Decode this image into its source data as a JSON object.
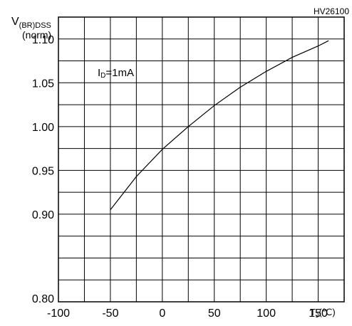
{
  "chart_data": {
    "type": "line",
    "code_label": "HV26100",
    "ylabel_main": "V",
    "ylabel_sub": "(BR)DSS",
    "ylabel_norm": "(norm)",
    "xlabel": "T",
    "xlabel_sub": "J",
    "xlabel_unit": "(℃)",
    "annotation": "I",
    "annotation_sub": "D",
    "annotation_value": "=1mA",
    "xlim": [
      -100,
      175
    ],
    "ylim": [
      0.8,
      1.125
    ],
    "x_ticks": [
      {
        "value": -100,
        "label": "-100"
      },
      {
        "value": -50,
        "label": "-50"
      },
      {
        "value": 0,
        "label": "0"
      },
      {
        "value": 50,
        "label": "50"
      },
      {
        "value": 100,
        "label": "100"
      },
      {
        "value": 150,
        "label": "150"
      }
    ],
    "y_ticks": [
      {
        "value": 0.9,
        "label": "0.90"
      },
      {
        "value": 0.95,
        "label": "0.95"
      },
      {
        "value": 1.0,
        "label": "1.00"
      },
      {
        "value": 1.05,
        "label": "1.05"
      },
      {
        "value": 1.1,
        "label": "1.10"
      }
    ],
    "y_bottom_label": "0.80",
    "series": [
      {
        "x": [
          -50,
          -25,
          0,
          25,
          50,
          75,
          100,
          125,
          150,
          160
        ],
        "y": [
          0.905,
          0.943,
          0.974,
          1.0,
          1.024,
          1.045,
          1.063,
          1.079,
          1.092,
          1.098
        ]
      }
    ],
    "grid": true
  }
}
